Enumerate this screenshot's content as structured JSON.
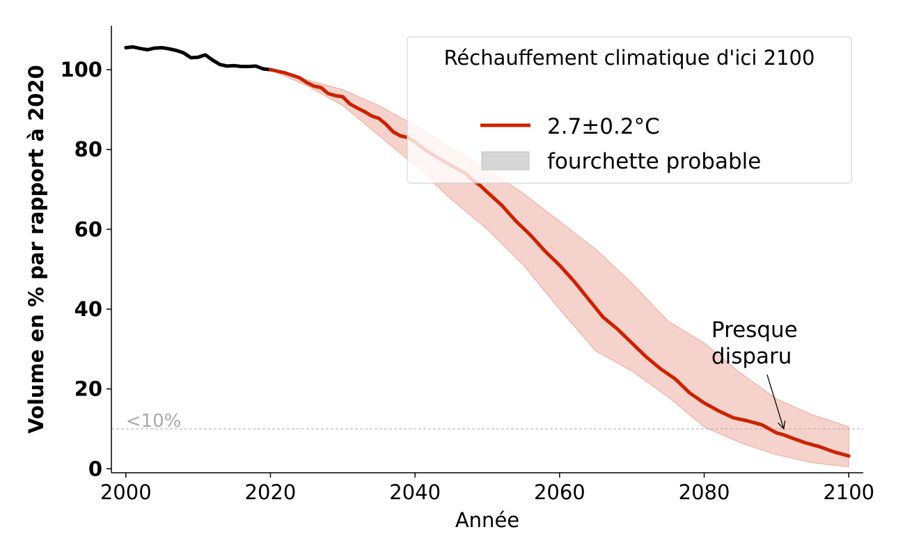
{
  "chart_data": {
    "type": "line",
    "xlabel": "Année",
    "ylabel": "Volume en % par rapport à 2020",
    "xlim": [
      1998,
      2102
    ],
    "ylim": [
      -1,
      111
    ],
    "xticks": [
      2000,
      2020,
      2040,
      2060,
      2080,
      2100
    ],
    "yticks": [
      0,
      20,
      40,
      60,
      80,
      100
    ],
    "legend": {
      "title": "Réchauffement climatique d'ici 2100",
      "position": "top-right",
      "entries": [
        {
          "label": "2.7±0.2°C",
          "kind": "line",
          "color": "#cc2200"
        },
        {
          "label": "fourchette probable",
          "kind": "patch",
          "color": "#d6d6d6"
        }
      ]
    },
    "threshold": {
      "y": 10,
      "label": "<10%",
      "color": "#aaaaaa"
    },
    "annotation": {
      "lines": [
        "Presque",
        "disparu"
      ],
      "text_x": 2081,
      "text_y": 33,
      "arrow_x": 2091,
      "arrow_y": 10
    },
    "colors": {
      "historical": "#000000",
      "projection": "#cc2200",
      "band_fill": "#f4c7bf",
      "band_edge": "#eea79b"
    },
    "historical": {
      "name": "historique",
      "x": [
        2000,
        2001,
        2002,
        2003,
        2004,
        2005,
        2006,
        2007,
        2008,
        2009,
        2010,
        2011,
        2012,
        2013,
        2014,
        2015,
        2016,
        2017,
        2018,
        2019,
        2020
      ],
      "y": [
        105.5,
        105.7,
        105.3,
        105.0,
        105.4,
        105.5,
        105.2,
        104.8,
        104.2,
        103.0,
        103.1,
        103.7,
        102.4,
        101.3,
        100.9,
        101.0,
        100.8,
        100.8,
        100.9,
        100.2,
        100.0
      ]
    },
    "projection": {
      "name": "2.7±0.2°C",
      "x": [
        2020,
        2022,
        2024,
        2025,
        2026,
        2027,
        2028,
        2029,
        2030,
        2031,
        2032,
        2033,
        2034,
        2035,
        2036,
        2037,
        2038,
        2039,
        2040,
        2041,
        2042,
        2044,
        2046,
        2047,
        2048,
        2049,
        2050,
        2052,
        2054,
        2056,
        2058,
        2060,
        2062,
        2064,
        2066,
        2068,
        2070,
        2072,
        2074,
        2076,
        2078,
        2080,
        2082,
        2084,
        2086,
        2088,
        2090,
        2091,
        2092,
        2094,
        2096,
        2098,
        2100
      ],
      "y": [
        100.0,
        99.2,
        98.0,
        96.8,
        95.9,
        95.5,
        94.0,
        93.5,
        93.2,
        91.4,
        90.4,
        89.5,
        88.4,
        87.8,
        86.3,
        84.4,
        83.4,
        83.0,
        81.8,
        80.5,
        79.2,
        77.0,
        75.0,
        74.0,
        72.3,
        71.0,
        69.3,
        66.0,
        62.0,
        58.5,
        54.5,
        51.0,
        47.0,
        42.5,
        38.0,
        35.0,
        31.5,
        28.0,
        25.0,
        22.5,
        19.0,
        16.5,
        14.5,
        12.8,
        12.0,
        11.0,
        9.0,
        8.5,
        7.8,
        6.5,
        5.5,
        4.2,
        3.2
      ]
    },
    "band": {
      "name": "fourchette probable",
      "x": [
        2020,
        2025,
        2030,
        2035,
        2040,
        2045,
        2050,
        2055,
        2060,
        2065,
        2070,
        2075,
        2080,
        2085,
        2090,
        2095,
        2100
      ],
      "upper": [
        100.0,
        97.5,
        95.0,
        91.0,
        86.0,
        80.5,
        75.0,
        69.0,
        62.0,
        55.0,
        46.5,
        37.0,
        31.5,
        24.0,
        17.5,
        13.5,
        10.5
      ],
      "lower": [
        100.0,
        96.0,
        91.0,
        83.5,
        76.0,
        67.5,
        60.0,
        51.0,
        40.0,
        29.5,
        24.5,
        18.0,
        10.5,
        6.5,
        3.5,
        1.5,
        0.5
      ]
    }
  }
}
